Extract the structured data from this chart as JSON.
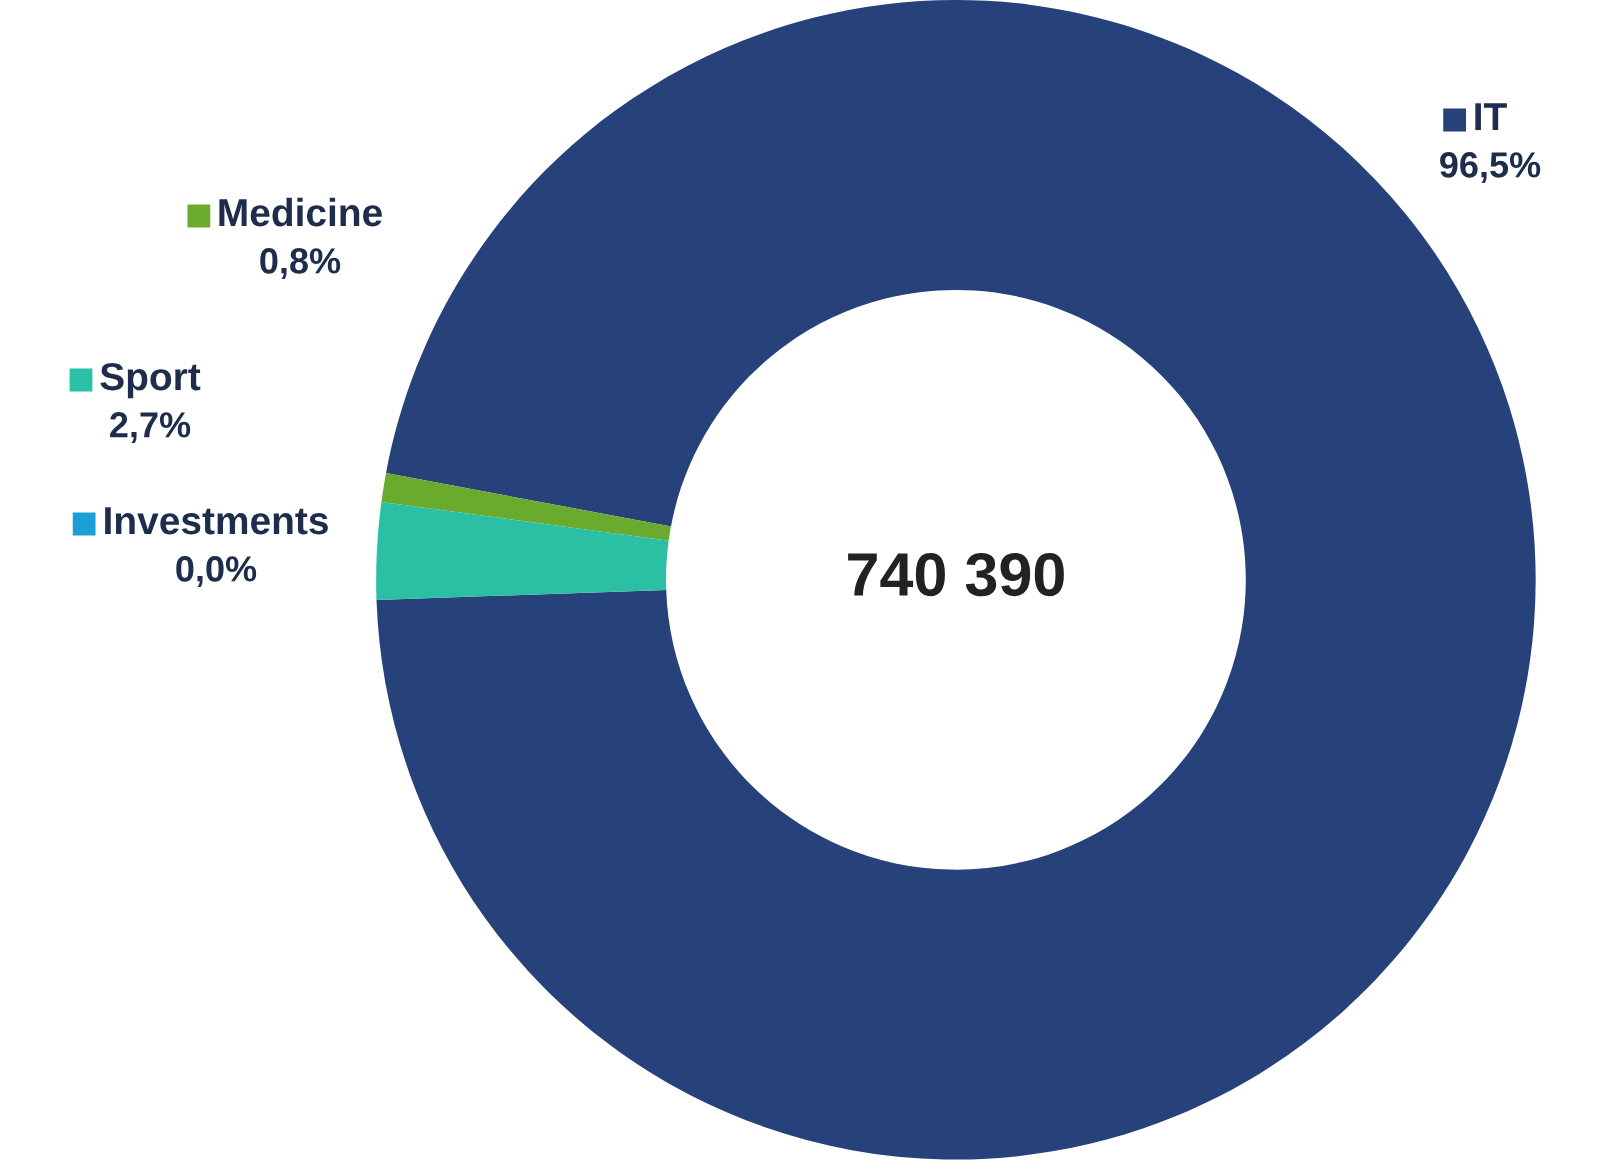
{
  "chart_data": {
    "type": "donut",
    "categories": [
      "IT",
      "Medicine",
      "Sport",
      "Investments"
    ],
    "values": [
      96.5,
      0.8,
      2.7,
      0.0
    ],
    "colors": [
      "#27417a",
      "#6aab2e",
      "#2bbfa4",
      "#1aa0d8"
    ],
    "value_labels": [
      "96,5%",
      "0,8%",
      "2,7%",
      "0,0%"
    ],
    "legend": "left",
    "annotations": [
      "740 390"
    ]
  }
}
